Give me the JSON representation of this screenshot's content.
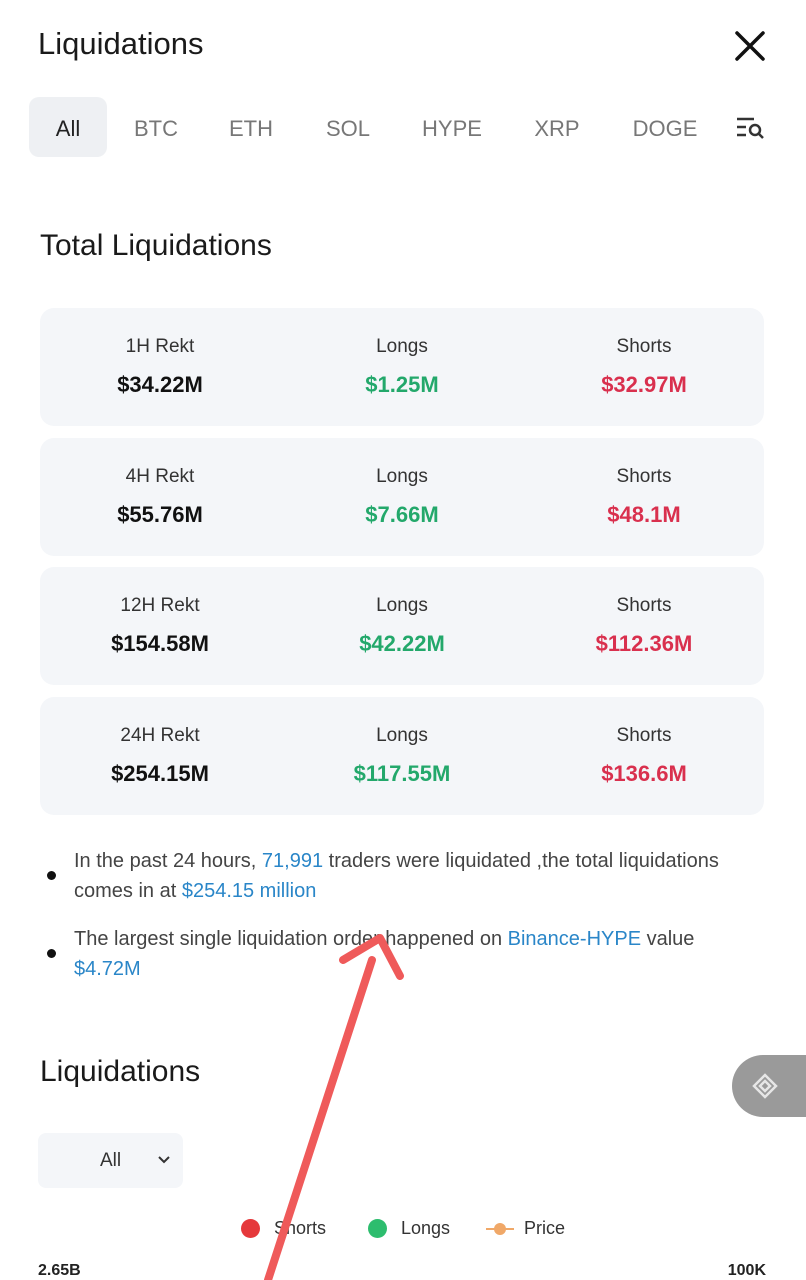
{
  "header": {
    "title": "Liquidations"
  },
  "tabs": [
    "All",
    "BTC",
    "ETH",
    "SOL",
    "HYPE",
    "XRP",
    "DOGE"
  ],
  "total_section": {
    "title": "Total Liquidations",
    "cards": [
      {
        "rekt_label": "1H Rekt",
        "rekt_value": "$34.22M",
        "longs_label": "Longs",
        "longs_value": "$1.25M",
        "shorts_label": "Shorts",
        "shorts_value": "$32.97M"
      },
      {
        "rekt_label": "4H Rekt",
        "rekt_value": "$55.76M",
        "longs_label": "Longs",
        "longs_value": "$7.66M",
        "shorts_label": "Shorts",
        "shorts_value": "$48.1M"
      },
      {
        "rekt_label": "12H Rekt",
        "rekt_value": "$154.58M",
        "longs_label": "Longs",
        "longs_value": "$42.22M",
        "shorts_label": "Shorts",
        "shorts_value": "$112.36M"
      },
      {
        "rekt_label": "24H Rekt",
        "rekt_value": "$254.15M",
        "longs_label": "Longs",
        "longs_value": "$117.55M",
        "shorts_label": "Shorts",
        "shorts_value": "$136.6M"
      }
    ]
  },
  "notes": [
    [
      {
        "text": "In the past 24 hours, "
      },
      {
        "text": "71,991",
        "link": true
      },
      {
        "text": " traders were liquidated ,the total liquidations comes in at "
      },
      {
        "text": "$254.15 million",
        "link": true
      }
    ],
    [
      {
        "text": "The largest single liquidation order happened on "
      },
      {
        "text": "Binance-HYPE",
        "link": true
      },
      {
        "text": " value "
      },
      {
        "text": "$4.72M",
        "link": true
      }
    ]
  ],
  "chart_section": {
    "title": "Liquidations",
    "dropdown": "All",
    "legend": [
      {
        "name": "Shorts",
        "color": "#e5383b",
        "style": "dot"
      },
      {
        "name": "Longs",
        "color": "#2dbd6e",
        "style": "dot"
      },
      {
        "name": "Price",
        "color": "#f0a868",
        "style": "line-dot"
      }
    ],
    "left_axis_top": "2.65B",
    "right_axis_top": "100K"
  }
}
